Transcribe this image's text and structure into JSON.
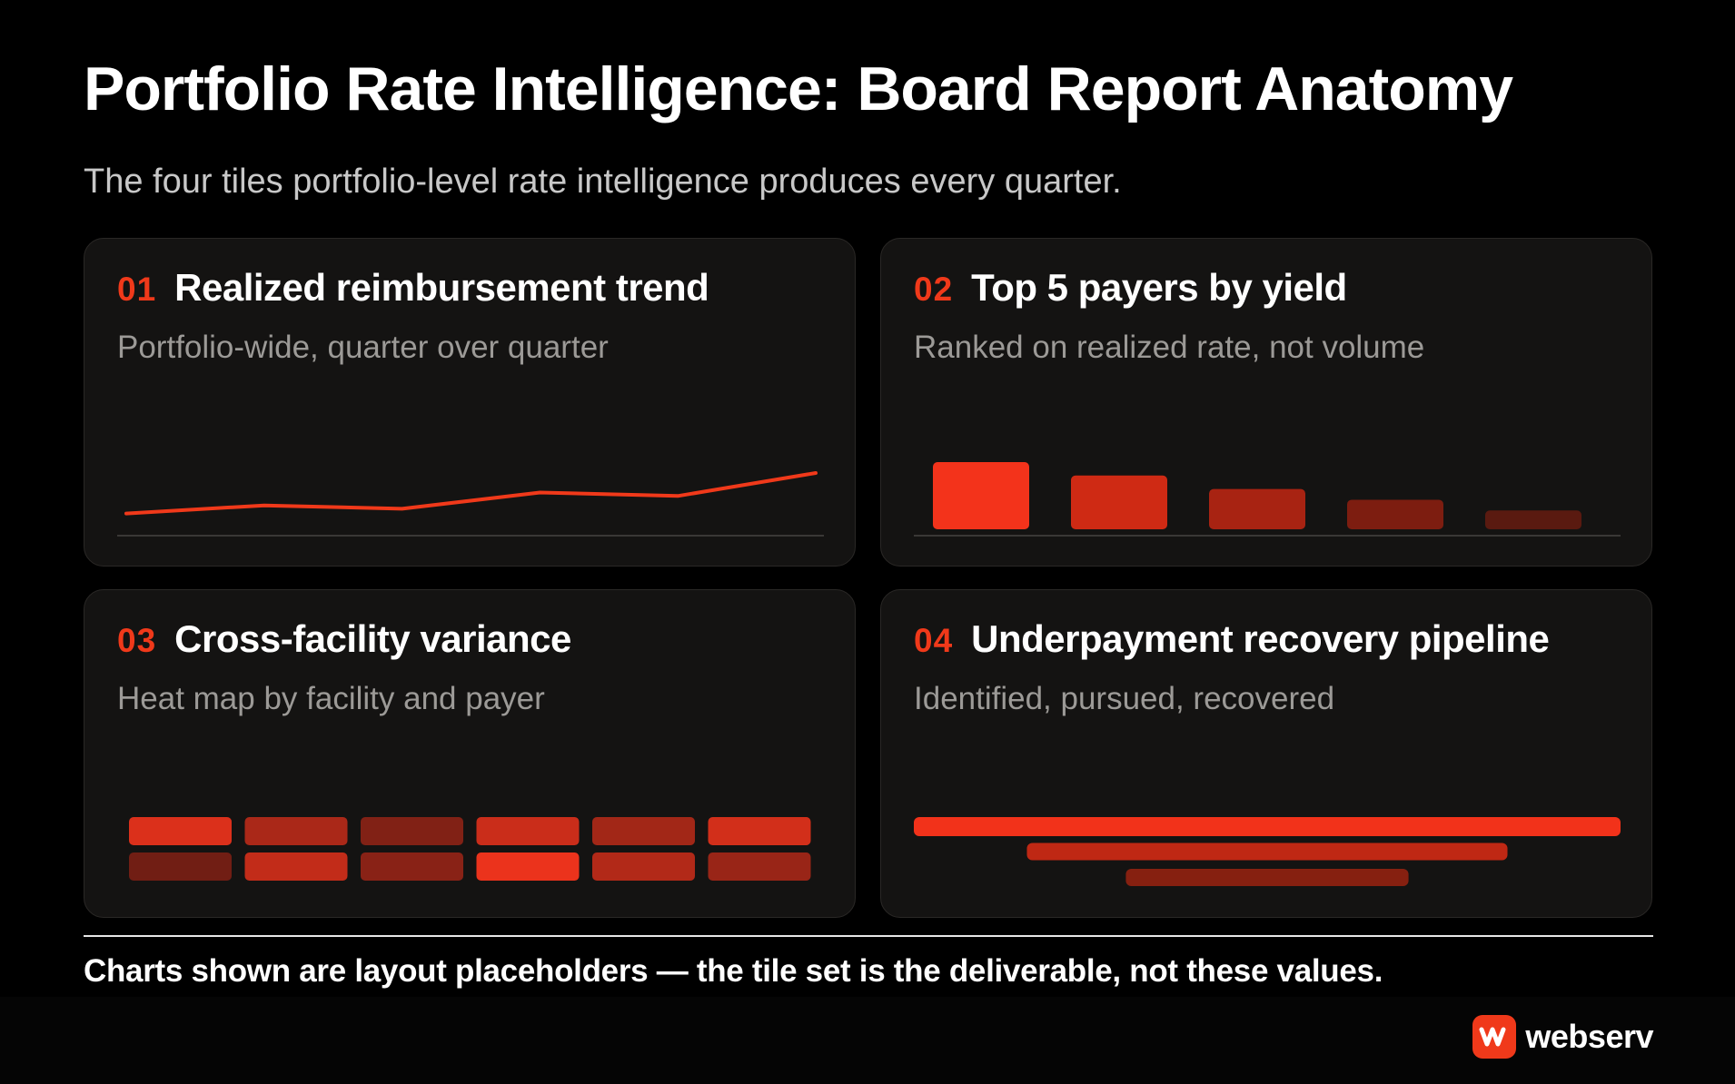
{
  "header": {
    "title": "Portfolio Rate Intelligence: Board Report Anatomy",
    "subtitle": "The four tiles portfolio-level rate intelligence produces every quarter."
  },
  "tiles": [
    {
      "number": "01",
      "title": "Realized reimbursement trend",
      "subtitle": "Portfolio-wide, quarter over quarter"
    },
    {
      "number": "02",
      "title": "Top 5 payers by yield",
      "subtitle": "Ranked on realized rate, not volume"
    },
    {
      "number": "03",
      "title": "Cross-facility variance",
      "subtitle": "Heat map by facility and payer"
    },
    {
      "number": "04",
      "title": "Underpayment recovery pipeline",
      "subtitle": "Identified, pursued, recovered"
    }
  ],
  "footer": {
    "note": "Charts shown are layout placeholders — the tile set is the deliverable, not these values."
  },
  "brand": {
    "name": "webserv",
    "icon": "brand-logo-icon",
    "color": "#f0391a"
  },
  "colors": {
    "accent": "#f0391a",
    "background": "#000000",
    "tile": "#141312"
  },
  "chart_data": [
    {
      "type": "line",
      "x": [
        1,
        2,
        3,
        4,
        5,
        6
      ],
      "series": [
        {
          "values": [
            1,
            2.2,
            1.7,
            4.1,
            3.6,
            7
          ]
        }
      ],
      "ylim": [
        0,
        7
      ],
      "grid": false,
      "color": "#f0391a"
    },
    {
      "type": "bar",
      "categories": [
        "",
        "",
        "",
        "",
        ""
      ],
      "values": [
        100,
        80,
        60,
        44,
        28
      ],
      "colors": [
        "#f3331b",
        "#cf2a14",
        "#a82312",
        "#7d1d10",
        "#5a1a10"
      ]
    },
    {
      "type": "heatmap",
      "rows": 2,
      "cols": 6,
      "values": [
        [
          0.85,
          0.55,
          0.3,
          0.75,
          0.5,
          0.8
        ],
        [
          0.2,
          0.7,
          0.35,
          0.95,
          0.6,
          0.45
        ]
      ]
    },
    {
      "type": "bar",
      "orientation": "horizontal",
      "categories": [
        "Identified",
        "Pursued",
        "Recovered"
      ],
      "values": [
        100,
        68,
        40
      ],
      "colors": [
        "#f2321a",
        "#bf2814",
        "#862010"
      ]
    }
  ]
}
